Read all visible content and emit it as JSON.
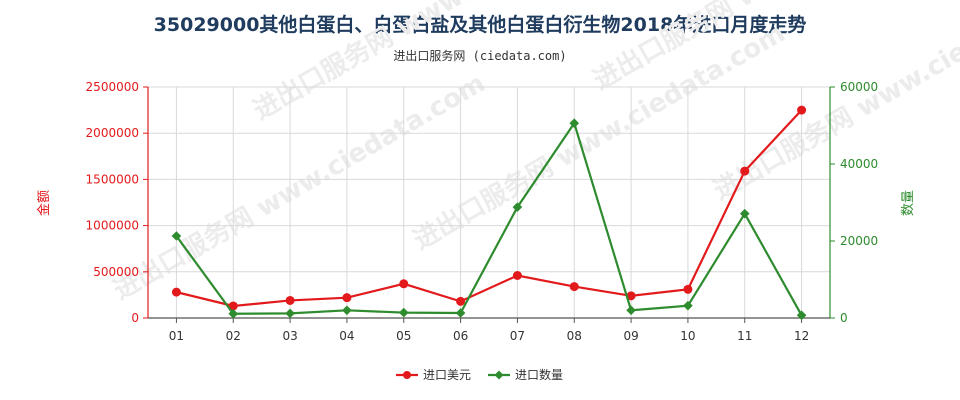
{
  "title": "35029000其他白蛋白、白蛋白盐及其他白蛋白衍生物2018年进口月度走势",
  "subtitle": "进出口服务网 (ciedata.com)",
  "watermark": "进出口服务网 www.ciedata.com",
  "colors": {
    "left_axis": "#e31a1c",
    "right_axis": "#2e8b2e",
    "grid": "#d9d9d9"
  },
  "chart_data": {
    "type": "line",
    "categories": [
      "01",
      "02",
      "03",
      "04",
      "05",
      "06",
      "07",
      "08",
      "09",
      "10",
      "11",
      "12"
    ],
    "y_left": {
      "label": "金额",
      "min": 0,
      "max": 2500000,
      "ticks": [
        "0",
        "500000",
        "1000000",
        "1500000",
        "2000000",
        "2500000"
      ]
    },
    "y_right": {
      "label": "数量",
      "min": 0,
      "max": 60000,
      "ticks": [
        "0",
        "20000",
        "40000",
        "60000"
      ]
    },
    "series": [
      {
        "name": "进口美元",
        "axis": "left",
        "color": "#e31a1c",
        "marker": "circle",
        "values": [
          280000,
          130000,
          190000,
          220000,
          370000,
          180000,
          460000,
          340000,
          240000,
          310000,
          1590000,
          2250000
        ]
      },
      {
        "name": "进口数量",
        "axis": "right",
        "color": "#2e8b2e",
        "marker": "diamond",
        "values": [
          21300,
          1100,
          1200,
          2000,
          1400,
          1300,
          28800,
          50600,
          2000,
          3200,
          27100,
          700
        ]
      }
    ],
    "grid": true,
    "legend": "bottom-center"
  }
}
